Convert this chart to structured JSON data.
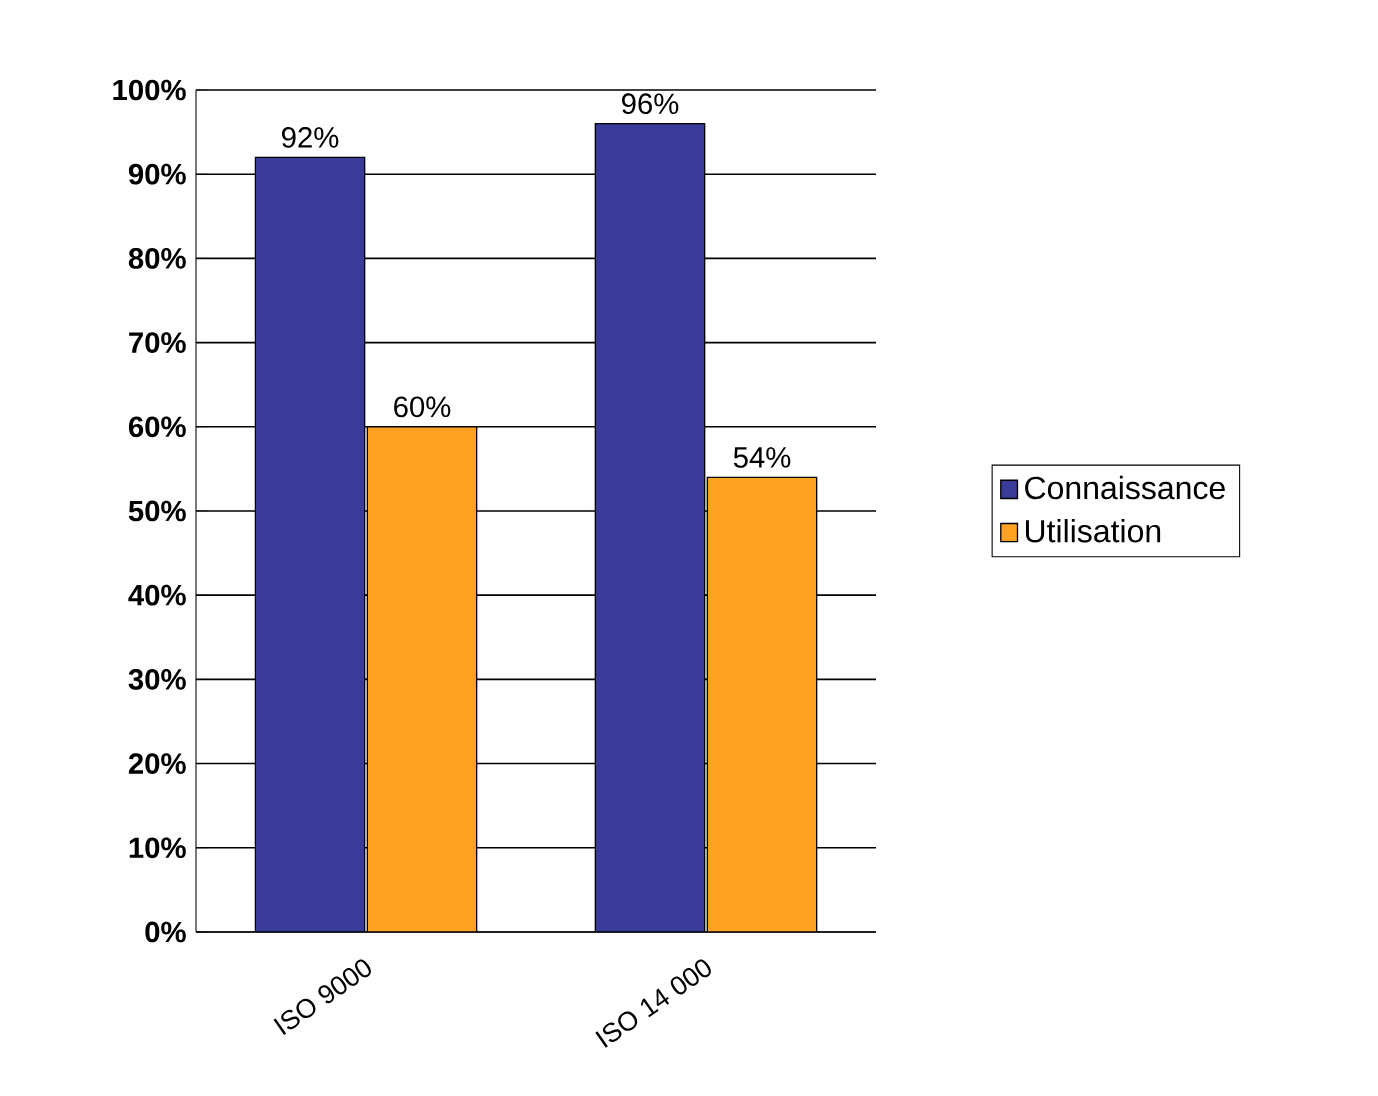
{
  "chart_data": {
    "type": "bar",
    "categories": [
      "ISO 9000",
      "ISO 14 000"
    ],
    "series": [
      {
        "name": "Connaissance",
        "color": "#3a3a98",
        "values": [
          92,
          96
        ],
        "value_labels": [
          "92%",
          "96%"
        ]
      },
      {
        "name": "Utilisation",
        "color": "#ffa224",
        "values": [
          60,
          54
        ],
        "value_labels": [
          "60%",
          "54%"
        ]
      }
    ],
    "ylim": [
      0,
      100
    ],
    "yticks": [
      {
        "value": 0,
        "label": "0%"
      },
      {
        "value": 10,
        "label": "10%"
      },
      {
        "value": 20,
        "label": "20%"
      },
      {
        "value": 30,
        "label": "30%"
      },
      {
        "value": 40,
        "label": "40%"
      },
      {
        "value": 50,
        "label": "50%"
      },
      {
        "value": 60,
        "label": "60%"
      },
      {
        "value": 70,
        "label": "70%"
      },
      {
        "value": 80,
        "label": "80%"
      },
      {
        "value": 90,
        "label": "90%"
      },
      {
        "value": 100,
        "label": "100%"
      }
    ],
    "grid": "y",
    "legend": "right"
  }
}
